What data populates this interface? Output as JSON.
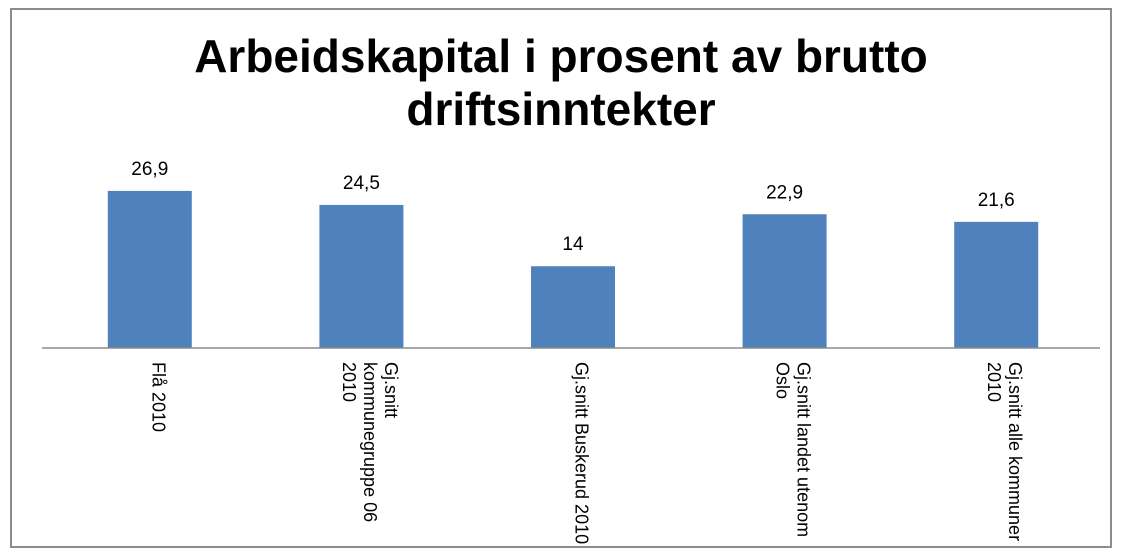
{
  "chart_data": {
    "type": "bar",
    "title": "Arbeidskapital i prosent av brutto driftsinntekter",
    "categories": [
      "Flå     2010",
      "Gj.snitt kommunegruppe 06 2010",
      "Gj.snitt Buskerud  2010",
      "Gj.snitt landet utenom Oslo",
      "Gj.snitt alle kommuner 2010"
    ],
    "values": [
      26.9,
      24.5,
      14,
      22.9,
      21.6
    ],
    "value_labels": [
      "26,9",
      "24,5",
      "14",
      "22,9",
      "21,6"
    ],
    "color": "#4f81bd"
  }
}
